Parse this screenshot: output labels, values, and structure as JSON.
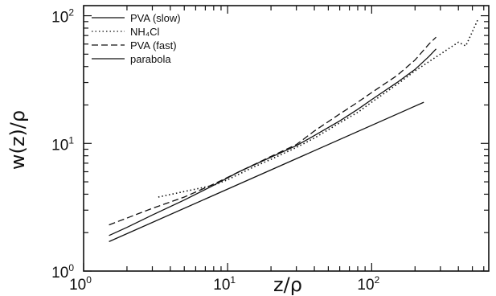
{
  "chart_data": {
    "type": "line",
    "title": "",
    "xlabel": "z/ρ",
    "ylabel": "w(z)/ρ",
    "xscale": "log",
    "yscale": "log",
    "xlim": [
      1,
      650
    ],
    "ylim": [
      1,
      120
    ],
    "x_ticks": [
      {
        "base": "10",
        "exp": "0"
      },
      {
        "base": "10",
        "exp": "1"
      },
      {
        "base": "10",
        "exp": "2"
      }
    ],
    "y_ticks": [
      {
        "base": "10",
        "exp": "0"
      },
      {
        "base": "10",
        "exp": "1"
      },
      {
        "base": "10",
        "exp": "2"
      }
    ],
    "legend_position": "top-left",
    "series": [
      {
        "name": "PVA (slow)",
        "style": "solid",
        "x": [
          1.5,
          2,
          3,
          5,
          8,
          12,
          20,
          30,
          40,
          60,
          80,
          100,
          150,
          200,
          250,
          280
        ],
        "y": [
          1.9,
          2.2,
          2.75,
          3.6,
          4.7,
          6.0,
          7.8,
          9.6,
          11.5,
          15.0,
          18.5,
          22.0,
          30.0,
          38.0,
          48.0,
          55.0
        ]
      },
      {
        "name": "NH4Cl",
        "style": "dotted",
        "x": [
          3.3,
          5,
          8,
          10,
          15,
          20,
          30,
          40,
          60,
          80,
          100,
          150,
          200,
          300,
          400,
          450,
          500,
          550
        ],
        "y": [
          3.8,
          4.2,
          4.7,
          5.2,
          6.5,
          7.5,
          9.3,
          11.0,
          14.5,
          17.5,
          21.0,
          29.0,
          37.0,
          50.0,
          62.0,
          58.0,
          75.0,
          95.0
        ]
      },
      {
        "name": "PVA (fast)",
        "style": "dashed",
        "x": [
          1.5,
          2,
          3,
          5,
          8,
          12,
          20,
          30,
          40,
          60,
          80,
          100,
          150,
          200,
          250,
          280
        ],
        "y": [
          2.3,
          2.6,
          3.1,
          3.8,
          4.8,
          6.0,
          7.9,
          9.8,
          12.5,
          17.0,
          21.0,
          25.0,
          34.0,
          45.0,
          60.0,
          68.0
        ]
      },
      {
        "name": "parabola",
        "style": "solid",
        "x": [
          1.5,
          230
        ],
        "y": [
          1.7,
          21.0
        ]
      }
    ],
    "legend": [
      {
        "label": "PVA (slow)",
        "dash": ""
      },
      {
        "label": "NH₄Cl",
        "dash": "1.5 3"
      },
      {
        "label": "PVA (fast)",
        "dash": "8 4"
      },
      {
        "label": "parabola",
        "dash": ""
      }
    ]
  }
}
